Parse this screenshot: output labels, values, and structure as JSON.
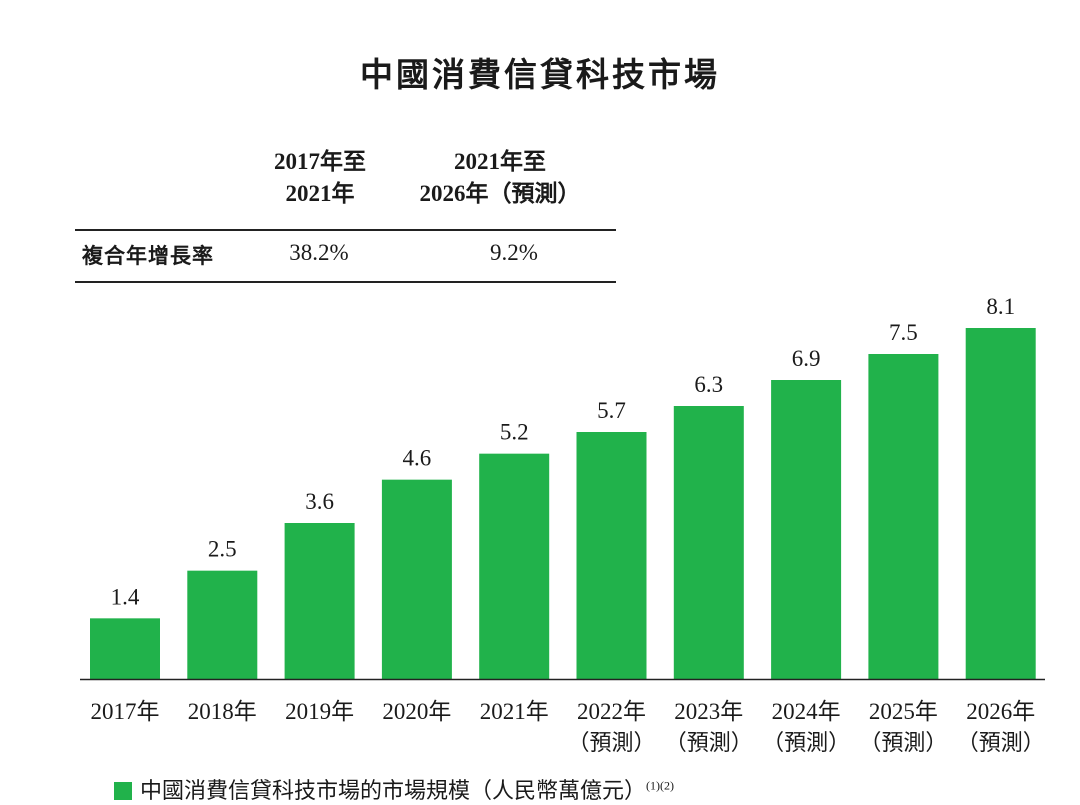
{
  "chart_data": {
    "type": "bar",
    "title": "中國消費信貸科技市場",
    "categories": [
      "2017年",
      "2018年",
      "2019年",
      "2020年",
      "2021年",
      "2022年",
      "2023年",
      "2024年",
      "2025年",
      "2026年"
    ],
    "category_notes": [
      "",
      "",
      "",
      "",
      "",
      "（預測）",
      "（預測）",
      "（預測）",
      "（預測）",
      "（預測）"
    ],
    "series": [
      {
        "name": "中國消費信貸科技市場的市場規模（人民幣萬億元）",
        "values": [
          1.4,
          2.5,
          3.6,
          4.6,
          5.2,
          5.7,
          6.3,
          6.9,
          7.5,
          8.1
        ]
      }
    ],
    "value_labels": [
      "1.4",
      "2.5",
      "3.6",
      "4.6",
      "5.2",
      "5.7",
      "6.3",
      "6.9",
      "7.5",
      "8.1"
    ],
    "ylim": [
      0,
      8.1
    ],
    "xlabel": "",
    "ylabel": "",
    "bar_color": "#21b24b",
    "legend_position": "bottom-left",
    "legend": {
      "label": "中國消費信貸科技市場的市場規模（人民幣萬億元）",
      "notes": "(1)(2)"
    },
    "cagr_table": {
      "period1_line1": "2017年至",
      "period1_line2": "2021年",
      "period2_line1": "2021年至",
      "period2_line2": "2026年（預測）",
      "row_label": "複合年增長率",
      "period1_value": "38.2%",
      "period2_value": "9.2%"
    }
  }
}
